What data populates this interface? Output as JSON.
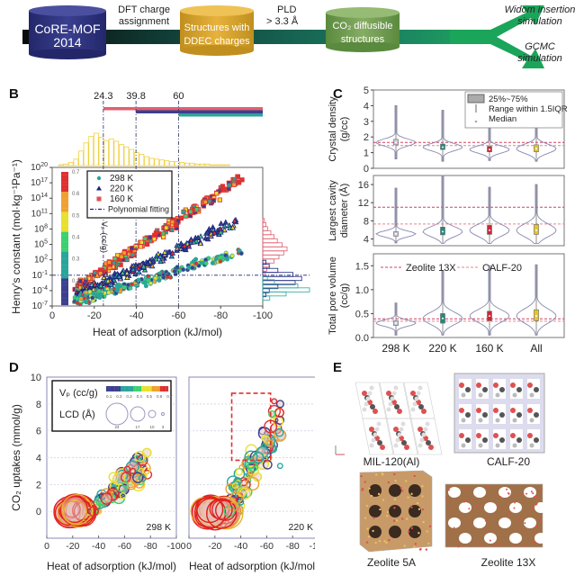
{
  "panel_A": {
    "stages": [
      {
        "label_line1": "CoRE-MOF",
        "label_line2": "2014",
        "color": "#2b2f74"
      },
      {
        "label_line1": "Structures with",
        "label_line2": "DDEC charges",
        "color": "#d9a42a"
      },
      {
        "label_line1": "CO₂ diffusible",
        "label_line2": "structures",
        "color": "#6f9a4e"
      }
    ],
    "steps": [
      {
        "line1": "DFT charge",
        "line2": "assignment"
      },
      {
        "line1": "PLD",
        "line2": "> 3.3 Å"
      }
    ],
    "outputs": [
      {
        "line1": "Widom insertion",
        "line2": "simulation"
      },
      {
        "line1": "GCMC",
        "line2": "simulation"
      }
    ]
  },
  "panel_labels": {
    "B": "B",
    "C": "C",
    "D": "D",
    "E": "E"
  },
  "chart_data": [
    {
      "id": "B",
      "type": "scatter",
      "title": "",
      "xlabel": "Heat of adsorption (kJ/mol)",
      "ylabel": "Henry's constant (mol·kg⁻¹Pa⁻¹)",
      "xlim": [
        0,
        -100
      ],
      "ylim_log10": [
        -7,
        20
      ],
      "xticks": [
        "0",
        "-20",
        "-40",
        "-60",
        "-80",
        "-100"
      ],
      "yticks_exp": [
        "-7",
        "-4",
        "-1",
        "2",
        "5",
        "8",
        "11",
        "14",
        "17",
        "20"
      ],
      "vlines": [
        -24.3,
        -39.8,
        -60
      ],
      "vline_labels": [
        "24.3",
        "39.8",
        "60"
      ],
      "hline_log10": -1,
      "legend": [
        {
          "label": "298 K",
          "marker": "circle",
          "color": "#2aa59a"
        },
        {
          "label": "220 K",
          "marker": "triangle",
          "color": "#1a237e"
        },
        {
          "label": "160 K",
          "marker": "square",
          "color": "#e05252"
        },
        {
          "label": "Polynomial fitting",
          "marker": "dashdot",
          "color": "#1a237e"
        }
      ],
      "colorbar": {
        "label": "Vₚ (cc/g)",
        "ticks": [
          "0.1",
          "0.2",
          "0.3",
          "0.4",
          "0.5",
          "0.6",
          "0.7"
        ]
      },
      "series": [
        {
          "name": "160 K",
          "fit": {
            "x": [
              -12,
              -90
            ],
            "log10y": [
              -3.5,
              18
            ]
          }
        },
        {
          "name": "220 K",
          "fit": {
            "x": [
              -12,
              -88
            ],
            "log10y": [
              -5,
              9.5
            ]
          }
        },
        {
          "name": "298 K",
          "fit": {
            "x": [
              -12,
              -90
            ],
            "log10y": [
              -6,
              3.5
            ]
          }
        }
      ],
      "threshold_bars": [
        {
          "from": 24.3,
          "color": "#e06070"
        },
        {
          "from": 39.8,
          "color": "#3a3f8f"
        },
        {
          "from": 60,
          "color": "#2aa59a"
        }
      ]
    },
    {
      "id": "C",
      "type": "violin",
      "categories": [
        "298 K",
        "220 K",
        "160 K",
        "All"
      ],
      "category_colors": [
        "#8a8ab8",
        "#1f8a80",
        "#c8283a",
        "#e8c420"
      ],
      "legend": [
        {
          "label": "25%~75%"
        },
        {
          "label": "Range within 1.5IQR"
        },
        {
          "label": "Median"
        }
      ],
      "ref_legend": [
        {
          "label": "Zeolite 13X",
          "color": "#d04060"
        },
        {
          "label": "CALF-20",
          "color": "#f08090"
        }
      ],
      "subplots": [
        {
          "ylabel_line1": "Crystal density",
          "ylabel_line2": "(g/cc)",
          "ylim": [
            0,
            5
          ],
          "yticks": [
            "0",
            "1",
            "2",
            "3",
            "4",
            "5"
          ],
          "refs": [
            1.65,
            1.45
          ],
          "medians": [
            1.65,
            1.35,
            1.2,
            1.25
          ],
          "q1": [
            1.5,
            1.2,
            1.05,
            1.05
          ],
          "q3": [
            1.85,
            1.55,
            1.4,
            1.5
          ],
          "max": [
            4.0,
            3.7,
            2.7,
            2.9
          ],
          "min": [
            0.6,
            0.45,
            0.5,
            0.45
          ]
        },
        {
          "ylabel_line1": "Largest cavity",
          "ylabel_line2": "diameter (Å)",
          "ylim": [
            2.5,
            18
          ],
          "yticks": [
            "4",
            "8",
            "12",
            "16"
          ],
          "refs": [
            11,
            7.3
          ],
          "medians": [
            5.1,
            5.6,
            5.9,
            5.9
          ],
          "q1": [
            4.6,
            4.9,
            5.0,
            5.0
          ],
          "q3": [
            5.6,
            6.6,
            7.0,
            7.2
          ],
          "max": [
            15.2,
            18,
            15.4,
            16
          ],
          "min": [
            3.1,
            3.0,
            3.0,
            3.0
          ]
        },
        {
          "ylabel_line1": "Total pore volume",
          "ylabel_line2": "(cc/g)",
          "ylim": [
            0,
            1.75
          ],
          "yticks": [
            "0.0",
            "0.5",
            "1.0",
            "1.5"
          ],
          "refs": [
            0.39,
            0.34
          ],
          "medians": [
            0.3,
            0.4,
            0.45,
            0.45
          ],
          "q1": [
            0.25,
            0.3,
            0.35,
            0.35
          ],
          "q3": [
            0.35,
            0.5,
            0.55,
            0.58
          ],
          "max": [
            0.72,
            1.4,
            1.5,
            1.52
          ],
          "min": [
            0.05,
            0.05,
            0.05,
            0.05
          ]
        }
      ]
    },
    {
      "id": "D",
      "type": "scatter",
      "ylabel": "CO₂ uptakes (mmol/g)",
      "xlabel": "Heat of adsorption (kJ/mol)",
      "xlim": [
        0,
        -100
      ],
      "ylim": [
        -2,
        10
      ],
      "xticks": [
        "0",
        "-20",
        "-40",
        "-60",
        "-80",
        "-100"
      ],
      "yticks": [
        "0",
        "2",
        "4",
        "6",
        "8",
        "10"
      ],
      "legend": {
        "vp_label": "Vₚ (cc/g)",
        "vp_ticks": [
          "0.1",
          "0.2",
          "0.3",
          "0.4",
          "0.5",
          "0.6",
          "0.7"
        ],
        "lcd_label": "LCD (Å)",
        "lcd_ticks": [
          "24",
          "17",
          "10",
          "3"
        ]
      },
      "subplots": [
        {
          "temperature": "298 K"
        },
        {
          "temperature": "220 K",
          "highlight_box": {
            "x": [
              -33,
              -63
            ],
            "y": [
              3.8,
              8.8
            ]
          }
        }
      ]
    }
  ],
  "panel_E": {
    "structures": [
      "MIL-120(Al)",
      "CALF-20",
      "Zeolite 5A",
      "Zeolite 13X"
    ]
  }
}
